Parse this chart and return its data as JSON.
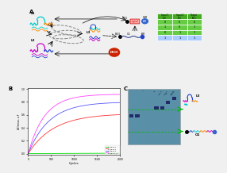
{
  "panel_A_bg": "#f0f0f0",
  "panel_B_bg": "#ffffff",
  "panel_C_bg": "#5a8fa8",
  "panel_D_bg": "#f0f0f0",
  "fig_bg": "#f0f0f0",
  "truth_table": {
    "headers": [
      "Input 1\n(L1)",
      "Input 2\n(L2)",
      "Output\n(O1)"
    ],
    "rows": [
      [
        0,
        0,
        0
      ],
      [
        1,
        0,
        1
      ],
      [
        0,
        1,
        1
      ],
      [
        1,
        1,
        1
      ]
    ],
    "row_colors": [
      "#66cc44",
      "#66cc44",
      "#66cc44",
      "#aaccff"
    ],
    "header_color": "#44aa22"
  },
  "curves": {
    "colors": [
      "#00dd00",
      "#ff3333",
      "#5555ff",
      "#ff44ff"
    ],
    "labels": [
      "1:0(8:0):1",
      "1:1(8:1):1",
      "1:0(8:1):1",
      "1:1(8:1.1):1"
    ],
    "y_maxes": [
      0.03,
      0.62,
      0.8,
      0.92
    ],
    "rates": [
      0.0001,
      0.0018,
      0.0022,
      0.0028
    ]
  },
  "colors": {
    "cyan": "#00cccc",
    "magenta": "#cc00cc",
    "orange": "#ff8800",
    "blue": "#2244cc",
    "darkblue": "#223388",
    "gray": "#888888",
    "pink_bg": "#ffaaaa",
    "red_circle": "#cc2200",
    "green_arrow": "#00bb00",
    "black": "#111111",
    "white": "#ffffff",
    "gel_band": "#1a2060",
    "gel_bg": "#5a8fa8"
  },
  "xlabel": "Cycles",
  "ylabel": "ΔF/εmax, a.F"
}
